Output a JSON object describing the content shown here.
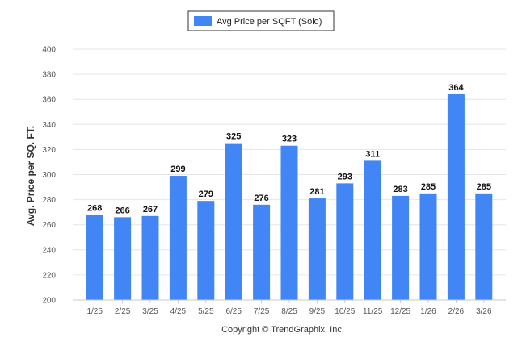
{
  "chart_data": {
    "type": "bar",
    "title": "",
    "xlabel": "",
    "ylabel": "Avg. Price per SQ. FT.",
    "categories": [
      "1/25",
      "2/25",
      "3/25",
      "4/25",
      "5/25",
      "6/25",
      "7/25",
      "8/25",
      "9/25",
      "10/25",
      "11/25",
      "12/25",
      "1/26",
      "2/26",
      "3/26"
    ],
    "series": [
      {
        "name": "Avg Price per SQFT (Sold)",
        "values": [
          268,
          266,
          267,
          299,
          279,
          325,
          276,
          323,
          281,
          293,
          311,
          283,
          285,
          364,
          285
        ]
      }
    ],
    "ylim": [
      200,
      400
    ],
    "yticks": [
      200,
      220,
      240,
      260,
      280,
      300,
      320,
      340,
      360,
      380,
      400
    ],
    "grid": true,
    "legend_position": "top-center",
    "colors": {
      "bar": "#4285f4"
    }
  },
  "footer": {
    "text": "Copyright © TrendGraphix, Inc."
  }
}
